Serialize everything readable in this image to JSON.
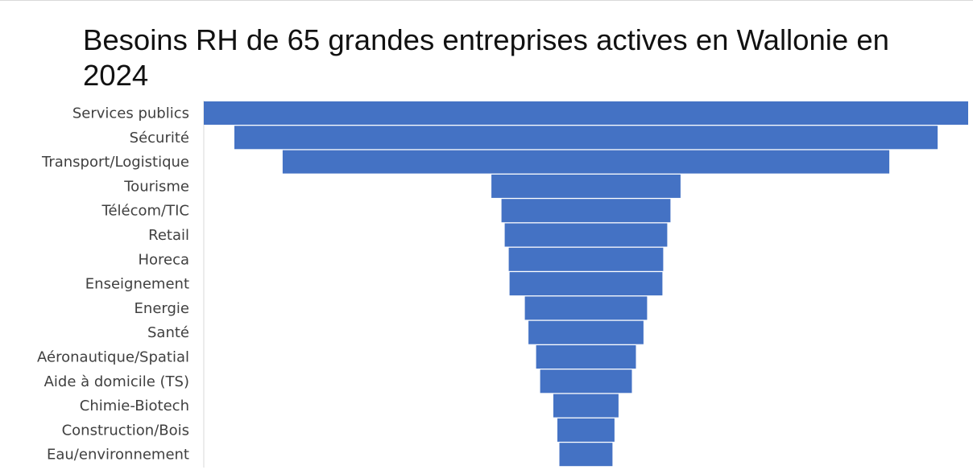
{
  "chart_data": {
    "type": "bar",
    "orientation": "horizontal-funnel",
    "title": "Besoins RH de 65 grandes entreprises actives en Wallonie en 2024",
    "categories": [
      "Services publics",
      "Sécurité",
      "Transport/Logistique",
      "Tourisme",
      "Télécom/TIC",
      "Retail",
      "Horeca",
      "Enseignement",
      "Energie",
      "Santé",
      "Aéronautique/Spatial",
      "Aide à domicile (TS)",
      "Chimie-Biotech",
      "Construction/Bois",
      "Eau/environnement"
    ],
    "values": [
      950,
      874,
      754,
      235,
      210,
      202,
      192,
      190,
      152,
      143,
      124,
      114,
      81,
      71,
      66
    ],
    "bar_color": "#4472C4",
    "axis_color": "#d9d9d9",
    "grid": false,
    "legend": "none"
  }
}
